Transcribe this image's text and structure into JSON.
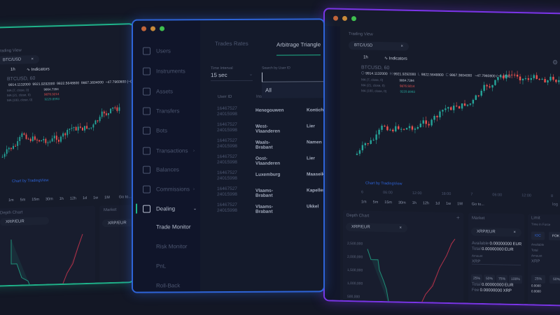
{
  "colors": {
    "background": "#131725",
    "green_window": "#1fb38a",
    "blue_window": "#2e64d8",
    "purple_window": "#7b35e8",
    "up": "#26a69a",
    "down": "#ef5350",
    "accent": "#1fb38a"
  },
  "trading": {
    "title": "Trading View",
    "symbol": "BTC/USD",
    "timeframe": "1h",
    "indicators": "Indicators",
    "ticker": "BTCUSD, 60",
    "ohlc": {
      "o_label": "O",
      "o": "9914.1132000",
      "h_label": "H",
      "h": "9921.9292000",
      "l_label": "L",
      "l": "9822.5648800",
      "c_label": "C",
      "c": "9867.3604000",
      "change": "−47.7960800 (−0.48%)"
    },
    "ma": [
      {
        "label": "MA (7, close, 0)",
        "value": "9864.7394"
      },
      {
        "label": "MA (21, close, 0)",
        "value": "9876.9214"
      },
      {
        "label": "MA (100, close, 0)",
        "value": "9229.8993"
      }
    ],
    "attribution": "Chart by TradingView",
    "time_axis": [
      "6",
      "06:00",
      "12:00",
      "18:00",
      "7",
      "06:00",
      "12:00",
      "8"
    ],
    "intervals": [
      "1m",
      "5m",
      "15m",
      "30m",
      "1h",
      "12h",
      "1d",
      "1w",
      "1M"
    ],
    "goto": "Go to...",
    "log": "log",
    "depth": {
      "title": "Depth Chart",
      "pair": "XRP/EUR",
      "y_ticks": [
        "2,500,000",
        "2,000,000",
        "1,500,000",
        "1,000,000",
        "500,000"
      ]
    },
    "market": {
      "title": "Market",
      "pair": "XRP/EUR",
      "available_label": "Available",
      "available": "0.00000000",
      "available_cur": "EUR",
      "total_label": "Total",
      "total": "0.00000000",
      "total_cur": "EUR",
      "amount_label": "Amount",
      "amount_placeholder": "XRP",
      "pcts": [
        "25%",
        "50%",
        "75%",
        "100%"
      ],
      "sum_total": "0.00000000",
      "sum_total_cur": "EUR",
      "fee_label": "Fee",
      "fee": "0.00000000",
      "fee_cur": "XRP"
    },
    "limit": {
      "title": "Limit",
      "tif_label": "Time in Force",
      "ioc": "IOC",
      "fok": "FOK",
      "available_label": "Available",
      "total_label": "Total",
      "amount_label": "Amount",
      "amount_placeholder": "XRP",
      "pct": "25%",
      "pct2": "50%",
      "sum_total": "0.0000",
      "fee": "0.0000"
    }
  },
  "admin": {
    "sidebar": [
      "Users",
      "Instruments",
      "Assets",
      "Transfers",
      "Bots",
      "Transactions",
      "Balances",
      "Commissions",
      "Dealing"
    ],
    "sidebar_icons": [
      "user-icon",
      "pulse-icon",
      "folder-icon",
      "transfer-icon",
      "bot-icon",
      "receipt-icon",
      "balance-icon",
      "tag-icon",
      "monitor-icon"
    ],
    "dealing_sub": [
      "Trade Monitor",
      "Risk Monitor",
      "PnL",
      "Roll-Back"
    ],
    "tabs": [
      "Trades Rates",
      "Arbitrage Triangle"
    ],
    "time_interval_label": "Time Interval",
    "time_interval": "15 sec",
    "search_label": "Search by User ID",
    "dropdown_option": "All",
    "columns": [
      "User ID",
      "Instrument 1",
      "Trades"
    ],
    "rows": [
      {
        "id1": "16467527",
        "id2": "24015998",
        "inst": "Henegouwen",
        "trades": "Kontich"
      },
      {
        "id1": "16467527",
        "id2": "24015998",
        "inst": "West-Vlaanderen",
        "trades": "Lier"
      },
      {
        "id1": "16467527",
        "id2": "24015998",
        "inst": "Waals-Brabant",
        "trades": "Namen"
      },
      {
        "id1": "16467527",
        "id2": "24015998",
        "inst": "Oost-Vlaanderen",
        "trades": "Lier"
      },
      {
        "id1": "16467527",
        "id2": "24015998",
        "inst": "Luxemburg",
        "trades": "Maaseik"
      },
      {
        "id1": "16467527",
        "id2": "24015998",
        "inst": "Vlaams-Brabant",
        "trades": "Kapellen"
      },
      {
        "id1": "16467527",
        "id2": "24015998",
        "inst": "Vlaams-Brabant",
        "trades": "Ukkel"
      }
    ]
  }
}
